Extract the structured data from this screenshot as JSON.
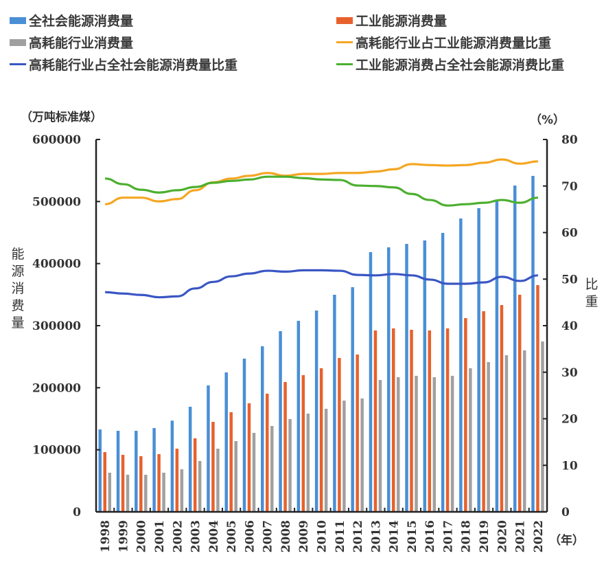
{
  "chart_data": {
    "type": "bar+line",
    "title": "",
    "categories": [
      "1998",
      "1999",
      "2000",
      "2001",
      "2002",
      "2003",
      "2004",
      "2005",
      "2006",
      "2007",
      "2008",
      "2009",
      "2010",
      "2011",
      "2012",
      "2013",
      "2014",
      "2015",
      "2016",
      "2017",
      "2018",
      "2019",
      "2020",
      "2021",
      "2022"
    ],
    "xlabel": "（年）",
    "left_axis": {
      "unit": "（万吨标准煤）",
      "title": "能源消费量",
      "ylim": [
        0,
        600000
      ],
      "ticks": [
        "0",
        "100000",
        "200000",
        "300000",
        "400000",
        "500000",
        "600000"
      ]
    },
    "right_axis": {
      "unit": "（%）",
      "title": "比重",
      "ylim": [
        0,
        80
      ],
      "ticks": [
        "0",
        "10",
        "20",
        "30",
        "40",
        "50",
        "60",
        "70",
        "80"
      ]
    },
    "series": [
      {
        "name": "全社会能源消费量",
        "kind": "bar",
        "axis": "left",
        "color": "#4a8fd6",
        "values": [
          132800,
          130600,
          130600,
          135000,
          147000,
          169400,
          203700,
          224700,
          246900,
          266800,
          291200,
          307800,
          324400,
          349800,
          362000,
          418500,
          426200,
          431700,
          437300,
          449500,
          472700,
          489300,
          500400,
          525800,
          541300
        ]
      },
      {
        "name": "工业能源消费量",
        "kind": "bar",
        "axis": "left",
        "color": "#e8612c",
        "values": [
          96300,
          91900,
          89700,
          93000,
          101800,
          118500,
          145000,
          160500,
          174900,
          190400,
          209200,
          220300,
          231400,
          248000,
          253500,
          292300,
          295600,
          293400,
          292300,
          295600,
          312200,
          323300,
          333200,
          349800,
          365300
        ]
      },
      {
        "name": "高耗能行业消费量",
        "kind": "bar",
        "axis": "left",
        "color": "#a0a0a0",
        "values": [
          63100,
          59800,
          59800,
          63100,
          68600,
          81900,
          101800,
          114000,
          127300,
          138400,
          149500,
          158300,
          166100,
          179300,
          182700,
          212500,
          217000,
          219200,
          217000,
          219200,
          231400,
          241300,
          252400,
          260200,
          274600
        ]
      },
      {
        "name": "高耗能行业占工业能源消费量比重",
        "kind": "line",
        "axis": "right",
        "color": "#f5a623",
        "values": [
          66.1,
          67.5,
          67.5,
          66.7,
          67.2,
          69.1,
          70.8,
          71.6,
          72.2,
          72.8,
          72.2,
          72.6,
          72.6,
          72.8,
          72.8,
          73.1,
          73.6,
          74.7,
          74.5,
          74.4,
          74.5,
          75.0,
          75.7,
          74.8,
          75.3
        ]
      },
      {
        "name": "高耗能行业占全社会能源消费量比重",
        "kind": "line",
        "axis": "right",
        "color": "#3a56c4",
        "values": [
          47.2,
          46.9,
          46.6,
          46.1,
          46.3,
          48.0,
          49.4,
          50.6,
          51.2,
          51.8,
          51.6,
          51.9,
          51.9,
          51.8,
          50.9,
          50.8,
          51.1,
          50.8,
          49.9,
          49.0,
          49.0,
          49.3,
          50.5,
          49.6,
          50.8
        ]
      },
      {
        "name": "工业能源消费占全社会能源消费比重",
        "kind": "line",
        "axis": "right",
        "color": "#4caf2f",
        "values": [
          71.6,
          70.4,
          69.2,
          68.6,
          69.1,
          69.8,
          70.7,
          71.1,
          71.4,
          72.0,
          72.0,
          71.7,
          71.4,
          71.3,
          70.1,
          70.0,
          69.7,
          68.3,
          67.0,
          65.8,
          66.1,
          66.4,
          67.0,
          66.4,
          67.5
        ]
      }
    ],
    "legend": {
      "placement": "top",
      "entries": [
        {
          "label": "全社会能源消费量",
          "type": "bar",
          "color": "#4a8fd6"
        },
        {
          "label": "工业能源消费量",
          "type": "bar",
          "color": "#e8612c"
        },
        {
          "label": "高耗能行业消费量",
          "type": "bar",
          "color": "#a0a0a0"
        },
        {
          "label": "高耗能行业占工业能源消费量比重",
          "type": "line",
          "color": "#f5a623"
        },
        {
          "label": "高耗能行业占全社会能源消费量比重",
          "type": "line",
          "color": "#3a56c4"
        },
        {
          "label": "工业能源消费占全社会能源消费比重",
          "type": "line",
          "color": "#4caf2f"
        }
      ]
    },
    "grid": false
  }
}
